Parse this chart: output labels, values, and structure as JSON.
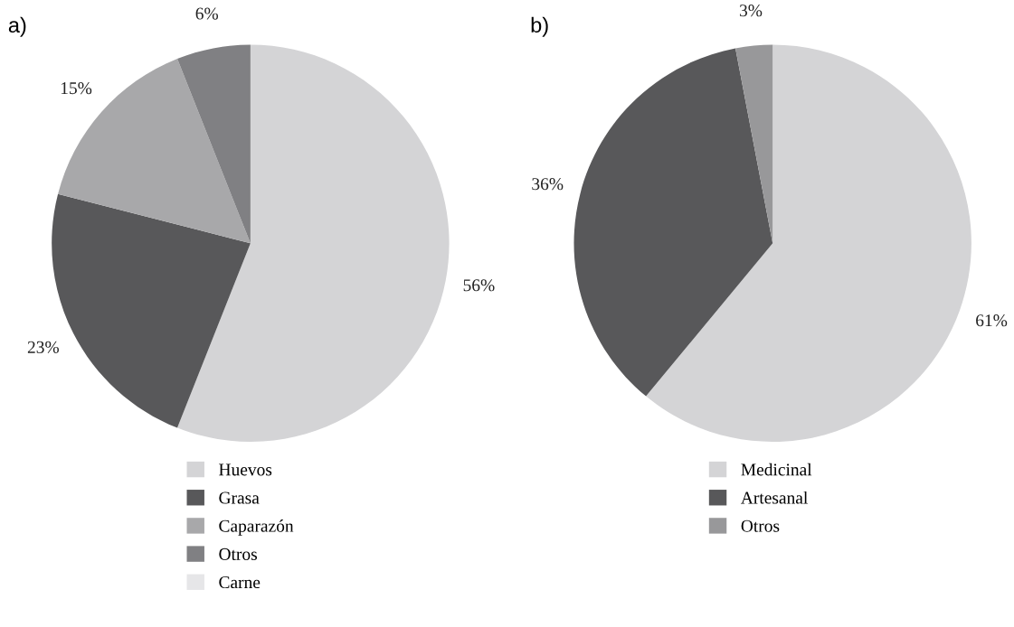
{
  "chart_data": [
    {
      "type": "pie",
      "title": "a)",
      "categories": [
        "Huevos",
        "Grasa",
        "Caparazón",
        "Otros",
        "Carne"
      ],
      "values": [
        56,
        23,
        15,
        6,
        0
      ],
      "value_labels": [
        "56%",
        "23%",
        "15%",
        "6%",
        null
      ],
      "colors": [
        "#d4d4d6",
        "#58585a",
        "#a8a8aa",
        "#808083",
        "#e6e6e8"
      ],
      "legend": "bottom"
    },
    {
      "type": "pie",
      "title": "b)",
      "categories": [
        "Medicinal",
        "Artesanal",
        "Otros"
      ],
      "values": [
        61,
        36,
        3
      ],
      "value_labels": [
        "61%",
        "36%",
        "3%"
      ],
      "colors": [
        "#d4d4d6",
        "#58585a",
        "#98989a"
      ],
      "legend": "bottom"
    }
  ]
}
